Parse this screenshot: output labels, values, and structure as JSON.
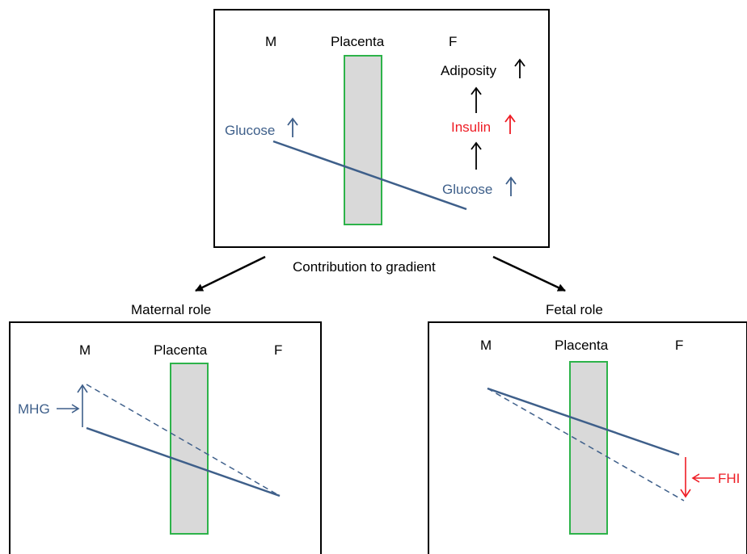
{
  "colors": {
    "blue": "#3e5f8a",
    "red": "#ee1c24",
    "green": "#2db34a",
    "placenta_fill": "#d9d9d9",
    "black": "#000000"
  },
  "top_panel": {
    "maternal_label": "M",
    "placenta_label": "Placenta",
    "fetal_label": "F",
    "maternal_glucose": "Glucose",
    "fetal_glucose": "Glucose",
    "insulin": "Insulin",
    "adiposity": "Adiposity",
    "arrow_up": "↑"
  },
  "center_caption": "Contribution to gradient",
  "maternal_panel": {
    "title": "Maternal role",
    "maternal_label": "M",
    "placenta_label": "Placenta",
    "fetal_label": "F",
    "annotation": "MHG"
  },
  "fetal_panel": {
    "title": "Fetal role",
    "maternal_label": "M",
    "placenta_label": "Placenta",
    "fetal_label": "F",
    "annotation": "FHI"
  }
}
